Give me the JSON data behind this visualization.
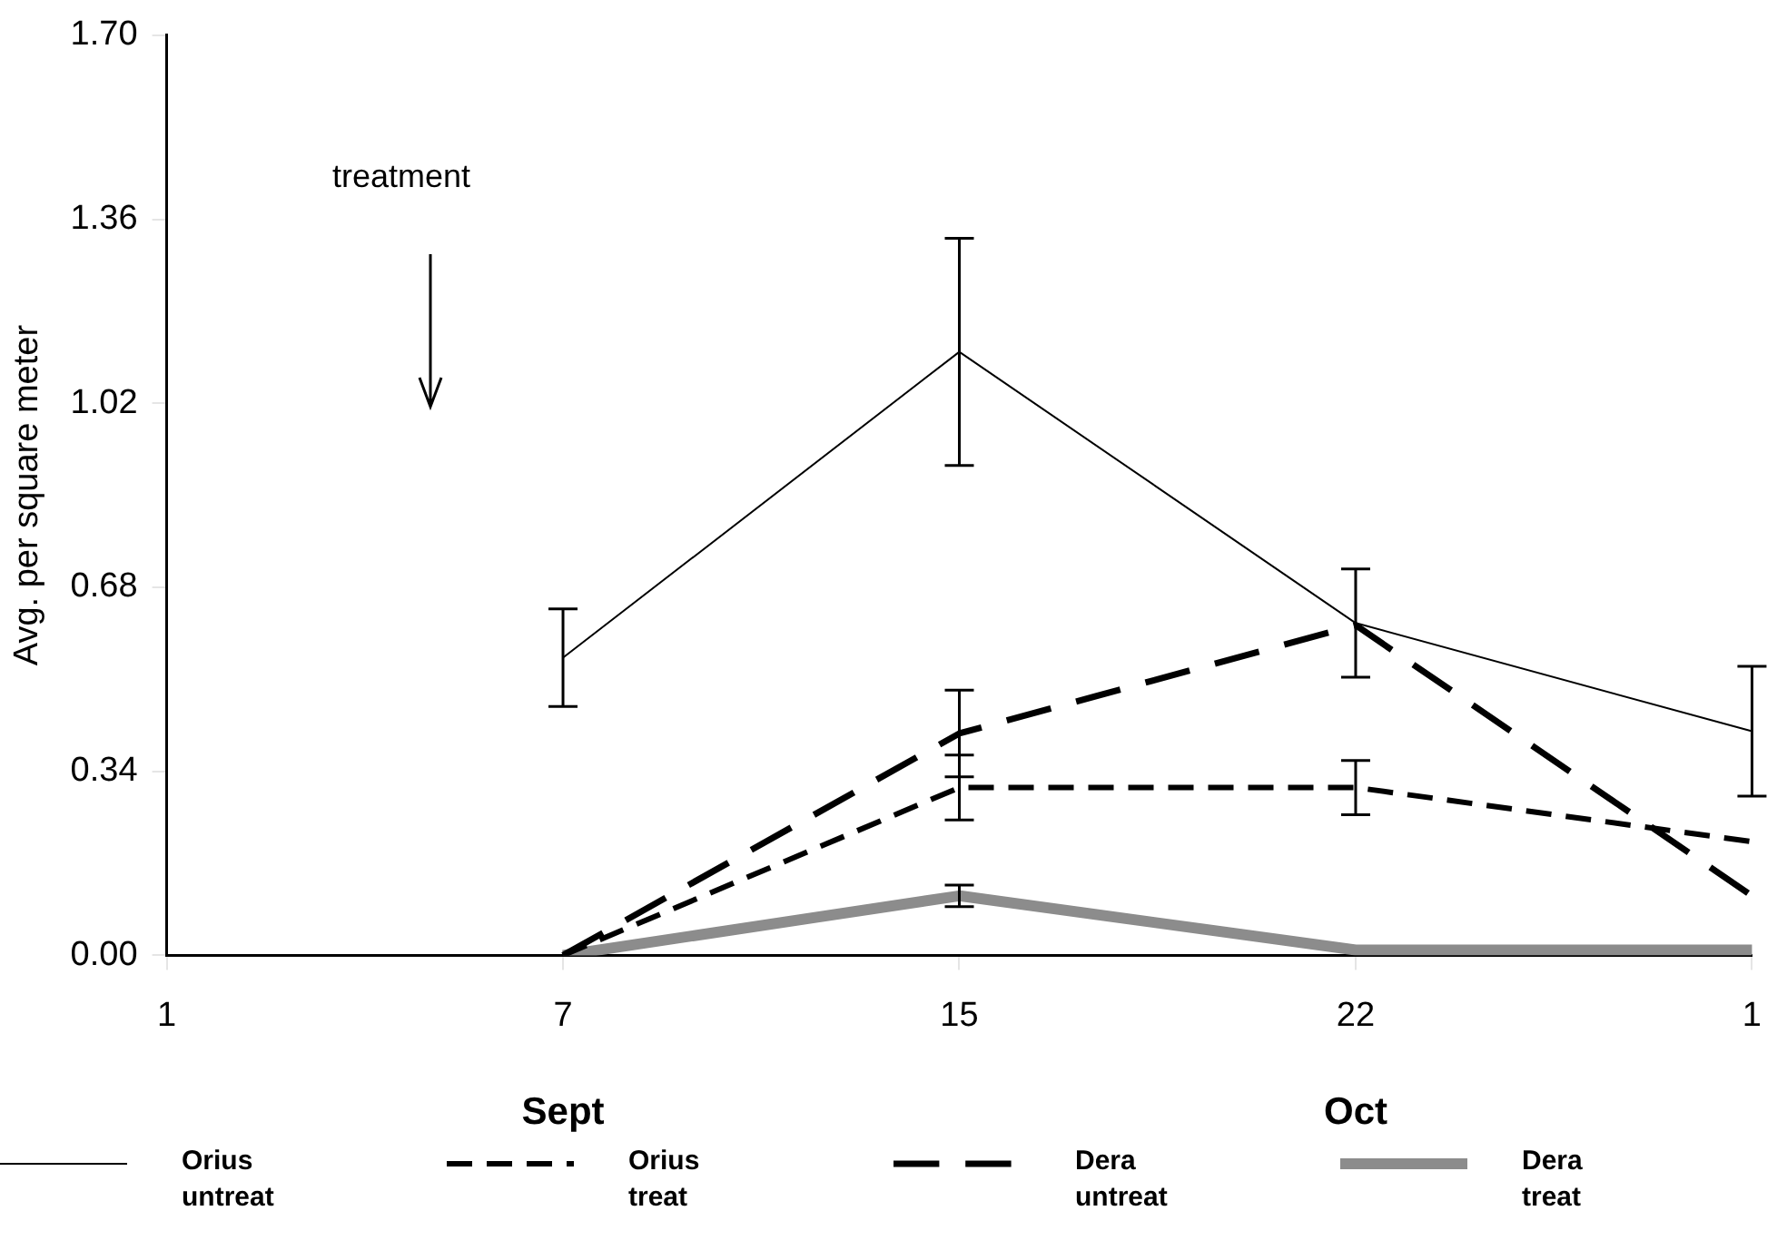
{
  "chart_data": {
    "type": "line",
    "ylabel": "Avg. per square meter",
    "categories": [
      "1",
      "7",
      "15",
      "22",
      "1"
    ],
    "series": [
      {
        "name": "Orius untreat",
        "color": "#000000",
        "line_style": "solid",
        "values": [
          null,
          0.55,
          1.115,
          0.614,
          0.414
        ],
        "errors": [
          null,
          0.09,
          0.21,
          0.1,
          0.12
        ]
      },
      {
        "name": "Orius treat",
        "color": "#000000",
        "line_style": "dashed",
        "values": [
          null,
          0,
          0.31,
          0.31,
          0.21
        ],
        "errors": [
          null,
          null,
          0.06,
          0.05,
          null
        ]
      },
      {
        "name": "Dera untreat",
        "color": "#000000",
        "line_style": "dashed",
        "values": [
          null,
          0,
          0.41,
          0.61,
          0.11
        ],
        "errors": [
          null,
          null,
          0.08,
          null,
          null
        ]
      },
      {
        "name": "Dera treat",
        "color": "#8c8c8c",
        "line_style": "solid",
        "values": [
          null,
          0,
          0.11,
          0.01,
          0.01
        ],
        "errors": [
          null,
          null,
          0.02,
          null,
          null
        ]
      }
    ],
    "ylim": [
      0,
      1.7
    ],
    "yticks": [
      {
        "value": 0,
        "label": "0.00"
      },
      {
        "value": 0.34,
        "label": "0.34"
      },
      {
        "value": 0.68,
        "label": "0.68"
      },
      {
        "value": 1.02,
        "label": "1.02"
      },
      {
        "value": 1.36,
        "label": "1.36"
      },
      {
        "value": 1.7,
        "label": "1.70"
      }
    ],
    "grid": false,
    "legend": "bottom",
    "marker": "none",
    "annotations": [
      "treatment",
      "Sept",
      "Oct"
    ]
  }
}
